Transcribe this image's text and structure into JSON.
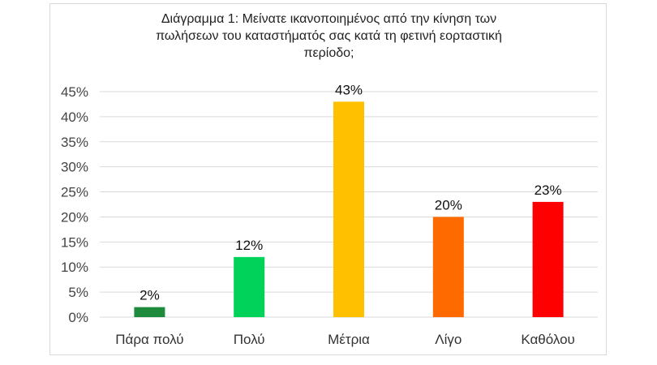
{
  "chart_data": {
    "type": "bar",
    "title_lines": [
      "Διάγραμμα 1: Μείνατε ικανοποιημένος από την κίνηση των",
      "πωλήσεων του καταστήματός σας κατά τη φετινή εορταστική",
      "περίοδο;"
    ],
    "categories": [
      "Πάρα πολύ",
      "Πολύ",
      "Μέτρια",
      "Λίγο",
      "Καθόλου"
    ],
    "values": [
      2,
      12,
      43,
      20,
      23
    ],
    "data_labels": [
      "2%",
      "12%",
      "43%",
      "20%",
      "23%"
    ],
    "colors": [
      "#1e8a3c",
      "#00d25a",
      "#ffc000",
      "#ff6a00",
      "#ff0000"
    ],
    "ylim": [
      0,
      45
    ],
    "yticks": [
      0,
      5,
      10,
      15,
      20,
      25,
      30,
      35,
      40,
      45
    ],
    "ytick_labels": [
      "0%",
      "5%",
      "10%",
      "15%",
      "20%",
      "25%",
      "30%",
      "35%",
      "40%",
      "45%"
    ],
    "xlabel": "",
    "ylabel": "",
    "grid": true,
    "legend": "none"
  }
}
